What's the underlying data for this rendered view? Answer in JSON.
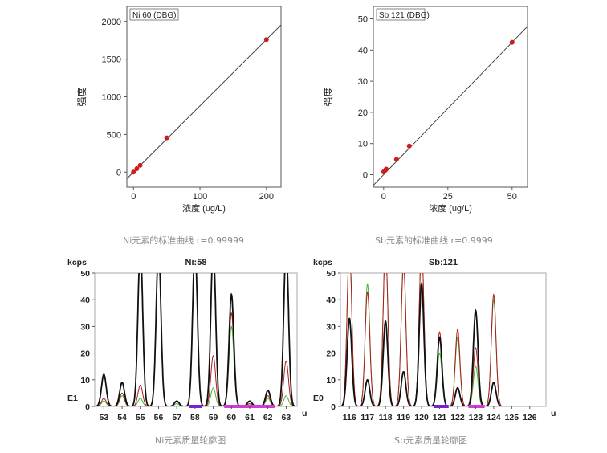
{
  "chart_data": [
    {
      "type": "scatter",
      "title": "Ni 60 (DBG)",
      "xlabel": "浓度 (ug/L)",
      "ylabel": "强度",
      "xlim": [
        -10,
        222
      ],
      "ylim": [
        -200,
        2200
      ],
      "xticks": [
        "0",
        "100",
        "200"
      ],
      "yticks": [
        "0",
        "500",
        "1000",
        "1500",
        "2000"
      ],
      "points": [
        [
          0,
          0
        ],
        [
          5,
          45
        ],
        [
          10,
          90
        ],
        [
          50,
          455
        ],
        [
          200,
          1760
        ]
      ],
      "fit": {
        "slope": 8.8,
        "intercept": 0
      },
      "caption": "Ni元素的标准曲线 r=0.99999"
    },
    {
      "type": "scatter",
      "title": "Sb 121 (DBG)",
      "xlabel": "浓度 (ug/L)",
      "ylabel": "强度",
      "xlim": [
        -4,
        56
      ],
      "ylim": [
        -4,
        54
      ],
      "xticks": [
        "0",
        "25",
        "50"
      ],
      "yticks": [
        "0",
        "10",
        "20",
        "30",
        "40",
        "50"
      ],
      "points": [
        [
          0,
          0.9
        ],
        [
          0.5,
          1.3
        ],
        [
          1,
          1.8
        ],
        [
          5,
          4.9
        ],
        [
          10,
          9.2
        ],
        [
          50,
          42.5
        ]
      ],
      "fit": {
        "slope": 0.85,
        "intercept": 0
      },
      "caption": "Sb元素的标准曲线 r=0.9999"
    },
    {
      "type": "line",
      "title": "Ni:58",
      "unit_label": "kcps",
      "exponent_label": "E1",
      "x_unit": "u",
      "xlim": [
        52.5,
        63.6
      ],
      "ylim": [
        0,
        50
      ],
      "yticks": [
        "0",
        "10",
        "20",
        "30",
        "40",
        "50"
      ],
      "xticks": [
        "53",
        "54",
        "55",
        "56",
        "57",
        "58",
        "59",
        "60",
        "61",
        "62",
        "63"
      ],
      "peaks": {
        "black": [
          [
            53,
            12
          ],
          [
            54,
            9
          ],
          [
            55,
            60
          ],
          [
            56,
            60
          ],
          [
            57,
            2
          ],
          [
            58,
            60
          ],
          [
            59,
            60
          ],
          [
            60,
            42
          ],
          [
            61,
            2
          ],
          [
            62,
            6
          ],
          [
            63,
            60
          ]
        ],
        "red": [
          [
            53,
            3
          ],
          [
            54,
            5
          ],
          [
            55,
            8
          ],
          [
            56,
            60
          ],
          [
            57,
            2
          ],
          [
            58,
            60
          ],
          [
            59,
            19
          ],
          [
            60,
            35
          ],
          [
            61,
            1
          ],
          [
            62,
            4
          ],
          [
            63,
            17
          ]
        ],
        "green": [
          [
            53,
            2
          ],
          [
            54,
            4
          ],
          [
            55,
            3
          ],
          [
            56,
            60
          ],
          [
            57,
            1
          ],
          [
            58,
            60
          ],
          [
            59,
            7
          ],
          [
            60,
            30
          ],
          [
            61,
            1
          ],
          [
            62,
            3
          ],
          [
            63,
            4
          ]
        ]
      },
      "markers": [
        {
          "color": "#7a1fd6",
          "from": 57.7,
          "to": 58.4
        },
        {
          "color": "#d63ad6",
          "from": 59.6,
          "to": 62.4
        }
      ],
      "caption": "Ni元素质量轮廓图"
    },
    {
      "type": "line",
      "title": "Sb:121",
      "unit_label": "kcps",
      "exponent_label": "E0",
      "x_unit": "u",
      "xlim": [
        115.5,
        126.9
      ],
      "ylim": [
        0,
        50
      ],
      "yticks": [
        "0",
        "10",
        "20",
        "30",
        "40",
        "50"
      ],
      "xticks": [
        "116",
        "117",
        "118",
        "119",
        "120",
        "121",
        "122",
        "123",
        "124",
        "125",
        "126"
      ],
      "peaks": {
        "black": [
          [
            116,
            33
          ],
          [
            117,
            10
          ],
          [
            118,
            32
          ],
          [
            119,
            13
          ],
          [
            120,
            46
          ],
          [
            121,
            26
          ],
          [
            122,
            7
          ],
          [
            123,
            36
          ],
          [
            124,
            9
          ]
        ],
        "red": [
          [
            116,
            60
          ],
          [
            117,
            43
          ],
          [
            118,
            60
          ],
          [
            119,
            53
          ],
          [
            120,
            60
          ],
          [
            121,
            28
          ],
          [
            122,
            29
          ],
          [
            123,
            22
          ],
          [
            124,
            42
          ]
        ],
        "green": [
          [
            116,
            60
          ],
          [
            117,
            46
          ],
          [
            118,
            60
          ],
          [
            119,
            55
          ],
          [
            120,
            60
          ],
          [
            121,
            20
          ],
          [
            122,
            26
          ],
          [
            123,
            15
          ],
          [
            124,
            40
          ]
        ]
      },
      "markers": [
        {
          "color": "#7a1fd6",
          "from": 120.7,
          "to": 121.5
        },
        {
          "color": "#d63ad6",
          "from": 122.6,
          "to": 123.5
        }
      ],
      "caption": "Sb元素质量轮廓图"
    }
  ]
}
